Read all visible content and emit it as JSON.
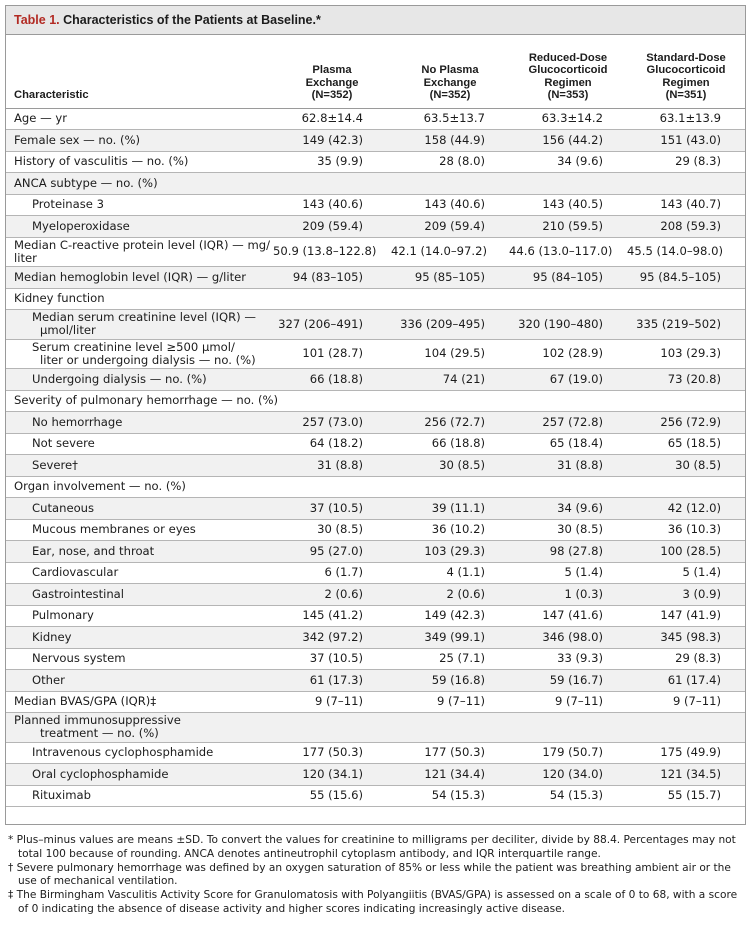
{
  "table": {
    "label": "Table 1.",
    "title": "Characteristics of the Patients at Baseline.*",
    "headers": {
      "characteristic": "Characteristic",
      "col1": [
        "Plasma",
        "Exchange",
        "(N=352)"
      ],
      "col2": [
        "No Plasma",
        "Exchange",
        "(N=352)"
      ],
      "col3": [
        "Reduced-Dose",
        "Glucocorticoid",
        "Regimen",
        "(N=353)"
      ],
      "col4": [
        "Standard-Dose",
        "Glucocorticoid",
        "Regimen",
        "(N=351)"
      ]
    },
    "rows": [
      {
        "label": "Age — yr",
        "v": [
          "62.8±14.4",
          "63.5±13.7",
          "63.3±14.2",
          "63.1±13.9"
        ]
      },
      {
        "label": "Female sex — no. (%)",
        "v": [
          "149 (42.3)",
          "158 (44.9)",
          "156 (44.2)",
          "151 (43.0)"
        ]
      },
      {
        "label": "History of vasculitis — no. (%)",
        "v": [
          "35 (9.9)",
          "28 (8.0)",
          "34 (9.6)",
          "29 (8.3)"
        ]
      },
      {
        "label": "ANCA subtype — no. (%)",
        "v": [
          "",
          "",
          "",
          ""
        ]
      },
      {
        "label": "Proteinase 3",
        "v": [
          "143 (40.6)",
          "143 (40.6)",
          "143 (40.5)",
          "143 (40.7)"
        ]
      },
      {
        "label": "Myeloperoxidase",
        "v": [
          "209 (59.4)",
          "209 (59.4)",
          "210 (59.5)",
          "208 (59.3)"
        ]
      },
      {
        "label": "Median C-reactive protein level (IQR) — mg/",
        "label2": "liter",
        "v": [
          "50.9 (13.8–122.8)",
          "42.1 (14.0–97.2)",
          "44.6 (13.0–117.0)",
          "45.5 (14.0–98.0)"
        ]
      },
      {
        "label": "Median hemoglobin level (IQR) — g/liter",
        "v": [
          "94 (83–105)",
          "95 (85–105)",
          "95 (84–105)",
          "95 (84.5–105)"
        ]
      },
      {
        "label": "Kidney function",
        "v": [
          "",
          "",
          "",
          ""
        ]
      },
      {
        "label": "Median serum creatinine level (IQR) —",
        "label2": "μmol/liter",
        "v": [
          "327 (206–491)",
          "336 (209–495)",
          "320 (190–480)",
          "335 (219–502)"
        ]
      },
      {
        "label": "Serum creatinine level ≥500 μmol/",
        "label2": "liter or undergoing dialysis — no. (%)",
        "v": [
          "101 (28.7)",
          "104 (29.5)",
          "102 (28.9)",
          "103 (29.3)"
        ]
      },
      {
        "label": "Undergoing dialysis — no. (%)",
        "v": [
          "66 (18.8)",
          "74 (21)",
          "67 (19.0)",
          "73 (20.8)"
        ]
      },
      {
        "label": "Severity of pulmonary hemorrhage — no. (%)",
        "v": [
          "",
          "",
          "",
          ""
        ]
      },
      {
        "label": "No hemorrhage",
        "v": [
          "257 (73.0)",
          "256 (72.7)",
          "257 (72.8)",
          "256 (72.9)"
        ]
      },
      {
        "label": "Not severe",
        "v": [
          "64 (18.2)",
          "66 (18.8)",
          "65 (18.4)",
          "65 (18.5)"
        ]
      },
      {
        "label": "Severe†",
        "v": [
          "31 (8.8)",
          "30 (8.5)",
          "31 (8.8)",
          "30 (8.5)"
        ]
      },
      {
        "label": "Organ involvement — no. (%)",
        "v": [
          "",
          "",
          "",
          ""
        ]
      },
      {
        "label": "Cutaneous",
        "v": [
          "37 (10.5)",
          "39 (11.1)",
          "34 (9.6)",
          "42 (12.0)"
        ]
      },
      {
        "label": "Mucous membranes or eyes",
        "v": [
          "30 (8.5)",
          "36 (10.2)",
          "30 (8.5)",
          "36 (10.3)"
        ]
      },
      {
        "label": "Ear, nose, and throat",
        "v": [
          "95 (27.0)",
          "103 (29.3)",
          "98 (27.8)",
          "100 (28.5)"
        ]
      },
      {
        "label": "Cardiovascular",
        "v": [
          "6 (1.7)",
          "4 (1.1)",
          "5 (1.4)",
          "5 (1.4)"
        ]
      },
      {
        "label": "Gastrointestinal",
        "v": [
          "2 (0.6)",
          "2 (0.6)",
          "1 (0.3)",
          "3 (0.9)"
        ]
      },
      {
        "label": "Pulmonary",
        "v": [
          "145 (41.2)",
          "149 (42.3)",
          "147 (41.6)",
          "147 (41.9)"
        ]
      },
      {
        "label": "Kidney",
        "v": [
          "342 (97.2)",
          "349 (99.1)",
          "346 (98.0)",
          "345 (98.3)"
        ]
      },
      {
        "label": "Nervous system",
        "v": [
          "37 (10.5)",
          "25 (7.1)",
          "33 (9.3)",
          "29 (8.3)"
        ]
      },
      {
        "label": "Other",
        "v": [
          "61 (17.3)",
          "59 (16.8)",
          "59 (16.7)",
          "61 (17.4)"
        ]
      },
      {
        "label": "Median BVAS/GPA (IQR)‡",
        "v": [
          "9 (7–11)",
          "9 (7–11)",
          "9 (7–11)",
          "9 (7–11)"
        ]
      },
      {
        "label": "Planned immunosuppressive",
        "label2": "treatment — no. (%)",
        "v": [
          "",
          "",
          "",
          ""
        ]
      },
      {
        "label": "Intravenous cyclophosphamide",
        "v": [
          "177 (50.3)",
          "177 (50.3)",
          "179 (50.7)",
          "175 (49.9)"
        ]
      },
      {
        "label": "Oral cyclophosphamide",
        "v": [
          "120 (34.1)",
          "121 (34.4)",
          "120 (34.0)",
          "121 (34.5)"
        ]
      },
      {
        "label": "Rituximab",
        "v": [
          "55 (15.6)",
          "54 (15.3)",
          "54 (15.3)",
          "55 (15.7)"
        ]
      }
    ],
    "footnotes": [
      "* Plus–minus values are means ±SD. To convert the values for creatinine to milligrams per deciliter, divide by 88.4. Percentages may not total 100 because of rounding. ANCA denotes antineutrophil cytoplasm antibody, and IQR interquartile range.",
      "† Severe pulmonary hemorrhage was defined by an oxygen saturation of 85% or less while the patient was breathing ambient air or the use of mechanical ventilation.",
      "‡ The Birmingham Vasculitis Activity Score for Granulomatosis with Polyangiitis (BVAS/GPA) is assessed on a scale of 0 to 68, with a score of 0 indicating the absence of disease activity and higher scores indicating increasingly active disease."
    ]
  },
  "colors": {
    "label_red": "#b22a23",
    "header_bg": "#e7e7e7",
    "stripe_bg": "#f1f1f1"
  }
}
